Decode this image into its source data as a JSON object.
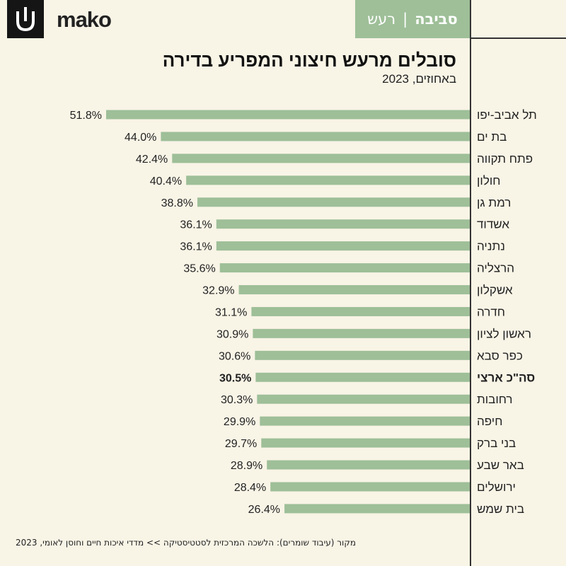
{
  "header": {
    "brand": "mako",
    "tag_primary": "סביבה",
    "tag_separator": "|",
    "tag_secondary": "רעש"
  },
  "colors": {
    "bar": "#9ebf98",
    "background": "#f8f4e6",
    "text": "#222222"
  },
  "chart_data": {
    "type": "bar",
    "orientation": "horizontal",
    "title": "סובלים מרעש חיצוני המפריע בדירה",
    "subtitle": "באחוזים, 2023",
    "xlim": [
      0,
      51.8
    ],
    "unit": "%",
    "highlight": "סה\"כ ארצי",
    "categories": [
      "תל אביב-יפו",
      "בת ים",
      "פתח תקווה",
      "חולון",
      "רמת גן",
      "אשדוד",
      "נתניה",
      "הרצליה",
      "אשקלון",
      "חדרה",
      "ראשון לציון",
      "כפר סבא",
      "סה\"כ ארצי",
      "רחובות",
      "חיפה",
      "בני ברק",
      "באר שבע",
      "ירושלים",
      "בית שמש"
    ],
    "values": [
      51.8,
      44.0,
      42.4,
      40.4,
      38.8,
      36.1,
      36.1,
      35.6,
      32.9,
      31.1,
      30.9,
      30.6,
      30.5,
      30.3,
      29.9,
      29.7,
      28.9,
      28.4,
      26.4
    ]
  },
  "source": "מקור (עיבוד שומרים): הלשכה המרכזית לסטטיסטיקה >> מדדי איכות חיים וחוסן לאומי, 2023"
}
